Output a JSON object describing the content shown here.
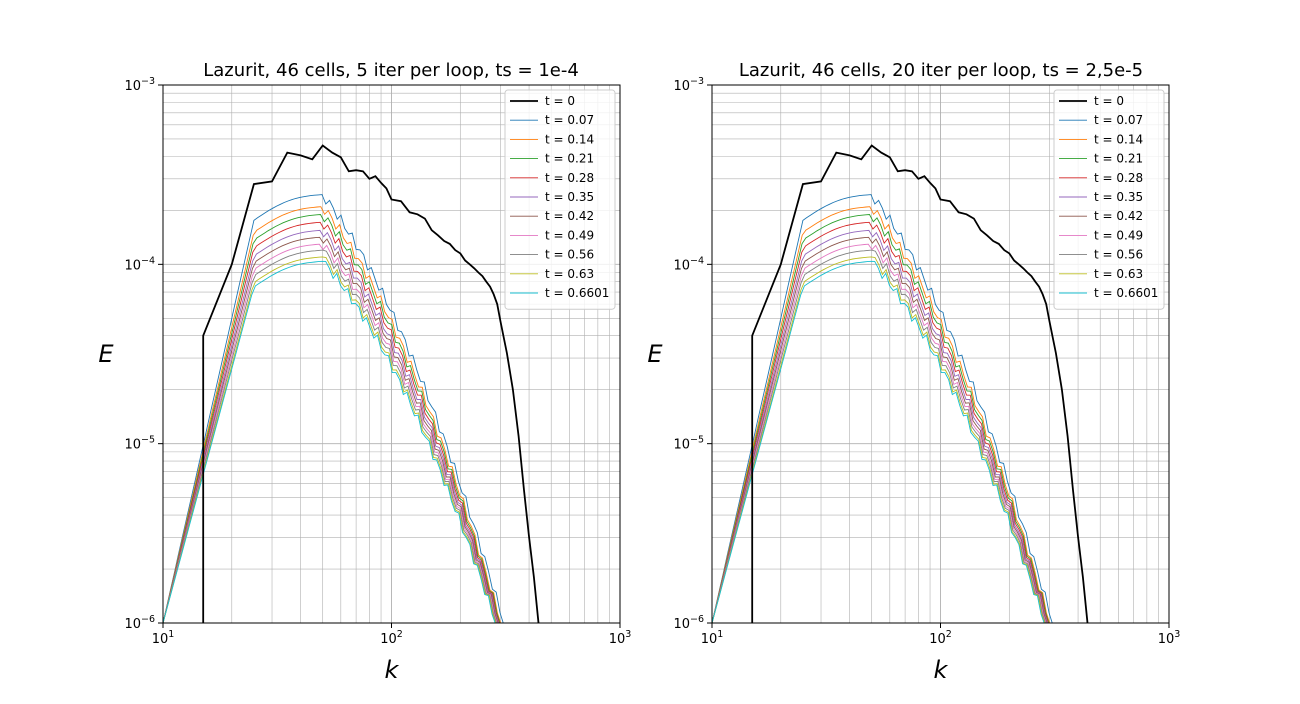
{
  "figure": {
    "width": 1300,
    "height": 700
  },
  "colors": {
    "t0": "#000000",
    "cycle": [
      "#1f77b4",
      "#ff7f0e",
      "#2ca02c",
      "#d62728",
      "#9467bd",
      "#8c564b",
      "#e377c2",
      "#7f7f7f",
      "#bcbd22",
      "#17becf"
    ]
  },
  "chart_data": [
    {
      "type": "line",
      "title": "Lazurit, 46 cells, 5 iter per loop, ts = 1e-4",
      "xlabel": "k",
      "ylabel": "E",
      "xscale": "log",
      "yscale": "log",
      "xlim": [
        10,
        1000
      ],
      "ylim": [
        1e-06,
        0.001
      ],
      "xticks": [
        {
          "base": "10",
          "exp": "1"
        },
        {
          "base": "10",
          "exp": "2"
        },
        {
          "base": "10",
          "exp": "3"
        }
      ],
      "yticks": [
        {
          "base": "10",
          "exp": "−6"
        },
        {
          "base": "10",
          "exp": "−5"
        },
        {
          "base": "10",
          "exp": "−4"
        },
        {
          "base": "10",
          "exp": "−3"
        }
      ],
      "grid": true,
      "legend": "top-right",
      "initial": {
        "name": "t = 0",
        "x": [
          15,
          15,
          20,
          25,
          30,
          35,
          40,
          45,
          50,
          55,
          60,
          65,
          70,
          75,
          80,
          85,
          90,
          95,
          100,
          110,
          120,
          130,
          140,
          150,
          160,
          170,
          180,
          190,
          200,
          210,
          220,
          230,
          240,
          250,
          260,
          270,
          280,
          290,
          300,
          320,
          340,
          360,
          380,
          400,
          420,
          440
        ],
        "y": [
          1e-06,
          4e-05,
          0.0001,
          0.00028,
          0.00029,
          0.00042,
          0.000405,
          0.000385,
          0.00046,
          0.00042,
          0.000395,
          0.00033,
          0.000335,
          0.00033,
          0.0003,
          0.00031,
          0.000285,
          0.000265,
          0.00023,
          0.000225,
          0.000195,
          0.00019,
          0.00018,
          0.000155,
          0.000145,
          0.000135,
          0.00013,
          0.00012,
          0.000115,
          0.000105,
          0.0001,
          9.5e-05,
          9e-05,
          8.6e-05,
          8e-05,
          7.5e-05,
          6.8e-05,
          6e-05,
          4.8e-05,
          3.2e-05,
          2e-05,
          1.1e-05,
          5.5e-06,
          3e-06,
          1.8e-06,
          1e-06
        ]
      },
      "series": [
        {
          "name": "t = 0.07",
          "peak": 0.000245,
          "xend": 310
        },
        {
          "name": "t = 0.14",
          "peak": 0.00021,
          "xend": 302
        },
        {
          "name": "t = 0.21",
          "peak": 0.00019,
          "xend": 300
        },
        {
          "name": "t = 0.28",
          "peak": 0.000172,
          "xend": 298
        },
        {
          "name": "t = 0.35",
          "peak": 0.000155,
          "xend": 296
        },
        {
          "name": "t = 0.42",
          "peak": 0.000142,
          "xend": 294
        },
        {
          "name": "t = 0.49",
          "peak": 0.00013,
          "xend": 292
        },
        {
          "name": "t = 0.56",
          "peak": 0.00012,
          "xend": 290
        },
        {
          "name": "t = 0.63",
          "peak": 0.00011,
          "xend": 288
        },
        {
          "name": "t = 0.6601",
          "peak": 0.000104,
          "xend": 286
        }
      ]
    },
    {
      "type": "line",
      "title": "Lazurit, 46 cells, 20 iter per loop, ts = 2,5e-5",
      "xlabel": "k",
      "ylabel": "E",
      "xscale": "log",
      "yscale": "log",
      "xlim": [
        10,
        1000
      ],
      "ylim": [
        1e-06,
        0.001
      ],
      "xticks": [
        {
          "base": "10",
          "exp": "1"
        },
        {
          "base": "10",
          "exp": "2"
        },
        {
          "base": "10",
          "exp": "3"
        }
      ],
      "yticks": [
        {
          "base": "10",
          "exp": "−6"
        },
        {
          "base": "10",
          "exp": "−5"
        },
        {
          "base": "10",
          "exp": "−4"
        },
        {
          "base": "10",
          "exp": "−3"
        }
      ],
      "grid": true,
      "legend": "top-right",
      "initial": {
        "name": "t = 0",
        "x": [
          15,
          15,
          20,
          25,
          30,
          35,
          40,
          45,
          50,
          55,
          60,
          65,
          70,
          75,
          80,
          85,
          90,
          95,
          100,
          110,
          120,
          130,
          140,
          150,
          160,
          170,
          180,
          190,
          200,
          210,
          220,
          230,
          240,
          250,
          260,
          270,
          280,
          290,
          300,
          320,
          340,
          360,
          380,
          400,
          420,
          440
        ],
        "y": [
          1e-06,
          4e-05,
          0.0001,
          0.00028,
          0.00029,
          0.00042,
          0.000405,
          0.000385,
          0.00046,
          0.00042,
          0.000395,
          0.00033,
          0.000335,
          0.00033,
          0.0003,
          0.00031,
          0.000285,
          0.000265,
          0.00023,
          0.000225,
          0.000195,
          0.00019,
          0.00018,
          0.000155,
          0.000145,
          0.000135,
          0.00013,
          0.00012,
          0.000115,
          0.000105,
          0.0001,
          9.5e-05,
          9e-05,
          8.6e-05,
          8e-05,
          7.5e-05,
          6.8e-05,
          6e-05,
          4.8e-05,
          3.2e-05,
          2e-05,
          1.1e-05,
          5.5e-06,
          3e-06,
          1.8e-06,
          1e-06
        ]
      },
      "series": [
        {
          "name": "t = 0.07",
          "peak": 0.000245,
          "xend": 310
        },
        {
          "name": "t = 0.14",
          "peak": 0.00021,
          "xend": 302
        },
        {
          "name": "t = 0.21",
          "peak": 0.00019,
          "xend": 300
        },
        {
          "name": "t = 0.28",
          "peak": 0.000172,
          "xend": 298
        },
        {
          "name": "t = 0.35",
          "peak": 0.000155,
          "xend": 296
        },
        {
          "name": "t = 0.42",
          "peak": 0.000142,
          "xend": 294
        },
        {
          "name": "t = 0.49",
          "peak": 0.00013,
          "xend": 292
        },
        {
          "name": "t = 0.56",
          "peak": 0.00012,
          "xend": 290
        },
        {
          "name": "t = 0.63",
          "peak": 0.00011,
          "xend": 288
        },
        {
          "name": "t = 0.6601",
          "peak": 0.000104,
          "xend": 286
        }
      ]
    }
  ]
}
